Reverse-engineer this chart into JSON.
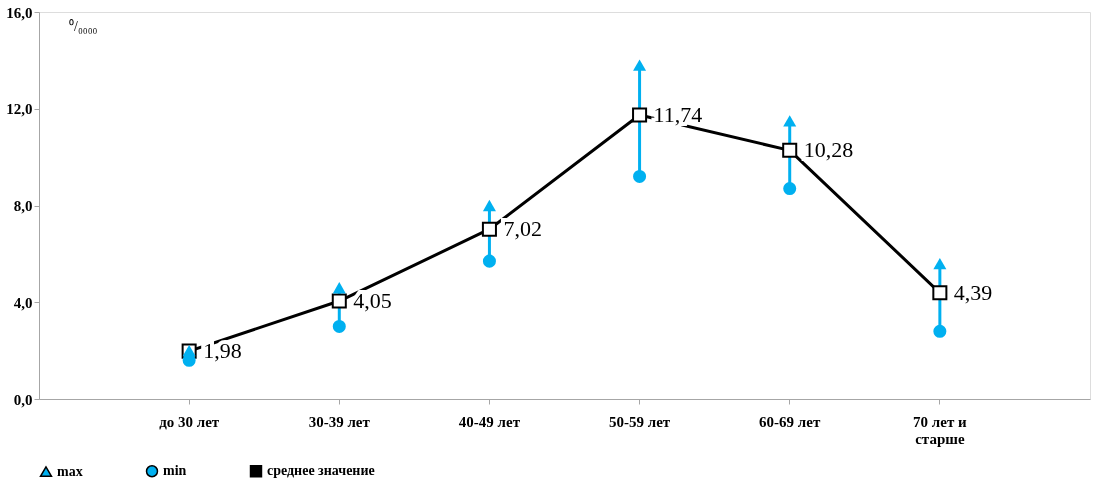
{
  "chart_data": {
    "type": "line",
    "categories": [
      "до 30 лет",
      "30-39 лет",
      "40-49 лет",
      "50-59 лет",
      "60-69 лет",
      "70 лет и\nстарше"
    ],
    "series": [
      {
        "name": "max",
        "type": "scatter",
        "marker": "triangle",
        "color": "#00b0f0",
        "values": [
          2.0,
          4.6,
          8.0,
          13.8,
          11.5,
          5.6
        ]
      },
      {
        "name": "min",
        "type": "scatter",
        "marker": "circle",
        "color": "#00b0f0",
        "values": [
          1.6,
          3.0,
          5.7,
          9.2,
          8.7,
          2.8
        ]
      },
      {
        "name": "среднее значение",
        "type": "line",
        "marker": "square",
        "color": "#000000",
        "values": [
          1.98,
          4.05,
          7.02,
          11.74,
          10.28,
          4.39
        ],
        "value_labels": [
          "1,98",
          "4,05",
          "7,02",
          "11,74",
          "10,28",
          "4,39"
        ]
      }
    ],
    "ylim": [
      0,
      16
    ],
    "yticks": [
      {
        "value": 0,
        "label": "0,0"
      },
      {
        "value": 4,
        "label": "4,0"
      },
      {
        "value": 8,
        "label": "8,0"
      },
      {
        "value": 12,
        "label": "12,0"
      },
      {
        "value": 16,
        "label": "16,0"
      }
    ],
    "annotations": [
      "⁰/₀₀₀₀"
    ],
    "grid": false,
    "legend": "bottom"
  }
}
